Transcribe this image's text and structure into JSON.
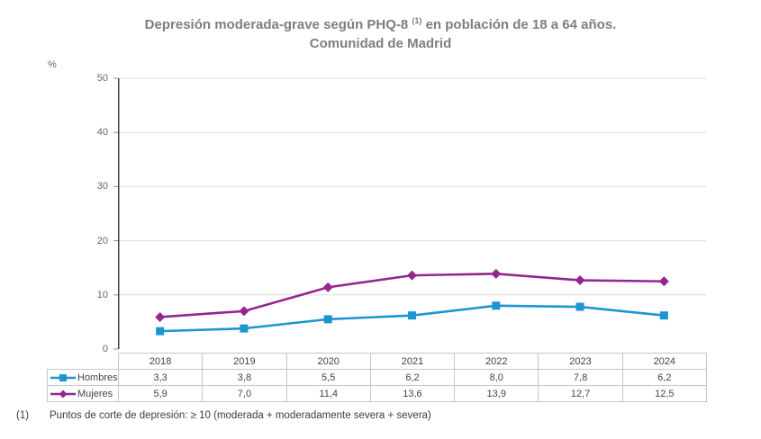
{
  "title": {
    "line1_pre": "Depresión moderada-grave según PHQ-8 ",
    "line1_sup": "(1)",
    "line1_post": " en población de 18 a 64 años.",
    "line2": "Comunidad de Madrid"
  },
  "chart_data": {
    "type": "line",
    "title": "Depresión moderada-grave según PHQ-8 (1) en población de 18 a 64 años. Comunidad de Madrid",
    "unit_label": "%",
    "categories": [
      "2018",
      "2019",
      "2020",
      "2021",
      "2022",
      "2023",
      "2024"
    ],
    "series": [
      {
        "name": "Hombres",
        "color": "#1d95d2",
        "marker": "square",
        "values": [
          3.3,
          3.8,
          5.5,
          6.2,
          8.0,
          7.8,
          6.2
        ]
      },
      {
        "name": "Mujeres",
        "color": "#93278f",
        "marker": "diamond",
        "values": [
          5.9,
          7.0,
          11.4,
          13.6,
          13.9,
          12.7,
          12.5
        ]
      }
    ],
    "ylim": [
      0,
      50
    ],
    "yticks": [
      0,
      10,
      20,
      30,
      40,
      50
    ],
    "grid": true,
    "legend_position": "table-left",
    "colors": {
      "grid_line": "#dcdcdc",
      "axis_line": "#3f3f3f",
      "tick_mark": "#8c8c8c"
    },
    "decimal_separator": ","
  },
  "footnote": {
    "marker": "(1)",
    "text": "Puntos de corte de depresión: ≥ 10 (moderada + moderadamente severa + severa)"
  }
}
